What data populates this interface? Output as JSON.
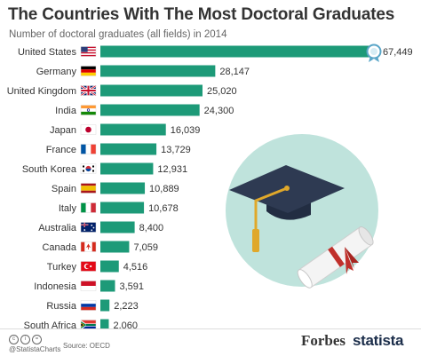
{
  "chart_data": {
    "type": "bar",
    "orientation": "horizontal",
    "title": "The Countries With The Most Doctoral Graduates",
    "subtitle": "Number of doctoral graduates (all fields) in 2014",
    "categories": [
      "United States",
      "Germany",
      "United Kingdom",
      "India",
      "Japan",
      "France",
      "South Korea",
      "Spain",
      "Italy",
      "Australia",
      "Canada",
      "Turkey",
      "Indonesia",
      "Russia",
      "South Africa"
    ],
    "values": [
      67449,
      28147,
      25020,
      24300,
      16039,
      13729,
      12931,
      10889,
      10678,
      8400,
      7059,
      4516,
      3591,
      2223,
      2060
    ],
    "value_labels": [
      "67,449",
      "28,147",
      "25,020",
      "24,300",
      "16,039",
      "13,729",
      "12,931",
      "10,889",
      "10,678",
      "8,400",
      "7,059",
      "4,516",
      "3,591",
      "2,223",
      "2,060"
    ],
    "flags": [
      "us-flag",
      "germany-flag",
      "uk-flag",
      "india-flag",
      "japan-flag",
      "france-flag",
      "south-korea-flag",
      "spain-flag",
      "italy-flag",
      "australia-flag",
      "canada-flag",
      "turkey-flag",
      "indonesia-flag",
      "russia-flag",
      "south-africa-flag"
    ],
    "xlim": [
      0,
      70000
    ],
    "grid": false,
    "legend": "none",
    "bar_color": "#1d9a78"
  },
  "footer": {
    "handle": "@StatistaCharts",
    "source": "Source: OECD",
    "forbes": "Forbes",
    "statista": "statista"
  },
  "colors": {
    "bar": "#1d9a78",
    "illustration_circle": "#bfe3dc",
    "cap": "#2e3a52",
    "tassel": "#e0a82a",
    "ribbon": "#c0302b"
  }
}
